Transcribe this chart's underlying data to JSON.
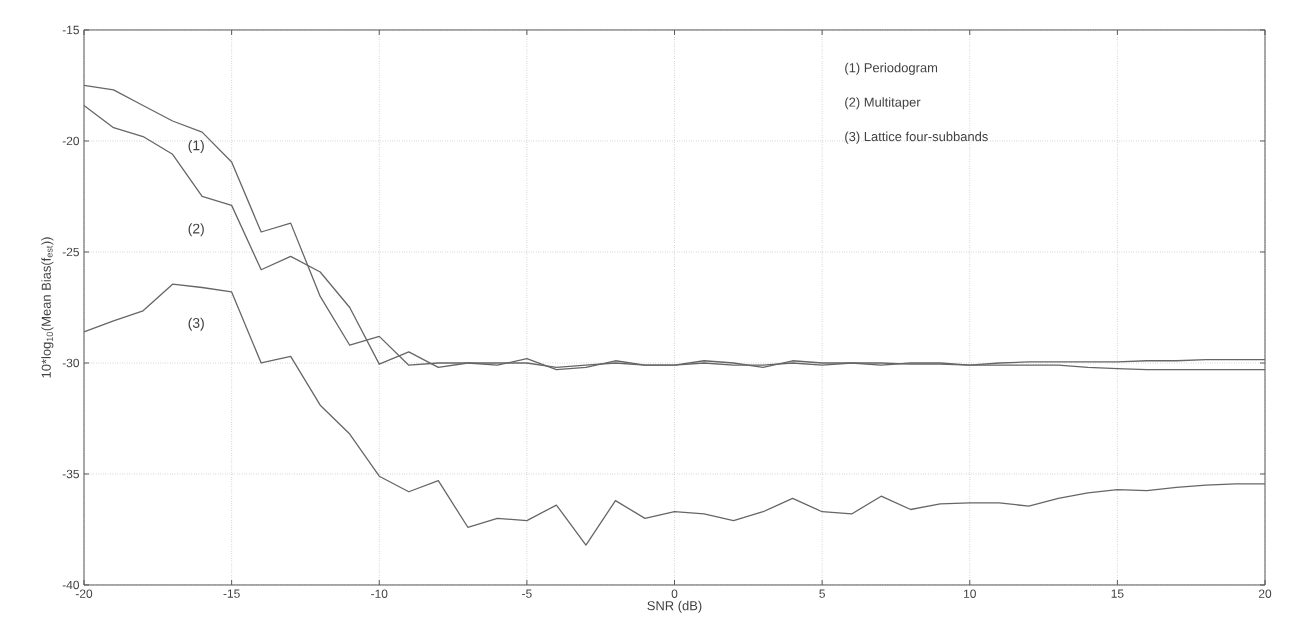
{
  "chart_data": {
    "type": "line",
    "xlabel": "SNR (dB)",
    "ylabel": "10*log$_{10}$(Mean Bias(f$_{est}$))",
    "x": [
      -20,
      -19,
      -18,
      -17,
      -16,
      -15,
      -14,
      -13,
      -12,
      -11,
      -10,
      -9,
      -8,
      -7,
      -6,
      -5,
      -4,
      -3,
      -2,
      -1,
      0,
      1,
      2,
      3,
      4,
      5,
      6,
      7,
      8,
      9,
      10,
      11,
      12,
      13,
      14,
      15,
      16,
      17,
      18,
      19,
      20
    ],
    "series": [
      {
        "color": "#666666",
        "values": [
          -17.5,
          -17.7,
          -18.4,
          -19.1,
          -19.6,
          -20.95,
          -24.1,
          -23.7,
          -27.0,
          -29.2,
          -28.8,
          -30.1,
          -30.0,
          -30.0,
          -30.1,
          -29.8,
          -30.3,
          -30.2,
          -29.9,
          -30.1,
          -30.1,
          -29.9,
          -30.0,
          -30.2,
          -29.9,
          -30.0,
          -30.0,
          -30.1,
          -30.0,
          -30.0,
          -30.1,
          -30.0,
          -29.95,
          -29.95,
          -29.95,
          -29.95,
          -29.9,
          -29.9,
          -29.85,
          -29.85,
          -29.85
        ]
      },
      {
        "color": "#666666",
        "values": [
          -18.4,
          -19.4,
          -19.8,
          -20.6,
          -22.5,
          -22.9,
          -25.8,
          -25.2,
          -25.9,
          -27.5,
          -30.05,
          -29.5,
          -30.2,
          -30.0,
          -30.0,
          -30.0,
          -30.2,
          -30.1,
          -30.0,
          -30.1,
          -30.1,
          -30.0,
          -30.1,
          -30.1,
          -30.0,
          -30.1,
          -30.0,
          -30.0,
          -30.05,
          -30.05,
          -30.1,
          -30.1,
          -30.1,
          -30.1,
          -30.2,
          -30.25,
          -30.3,
          -30.3,
          -30.3,
          -30.3,
          -30.3
        ]
      },
      {
        "color": "#666666",
        "values": [
          -28.6,
          -28.1,
          -27.65,
          -26.45,
          -26.6,
          -26.8,
          -30.0,
          -29.7,
          -31.9,
          -33.2,
          -35.1,
          -35.8,
          -35.3,
          -37.4,
          -37.0,
          -37.1,
          -36.4,
          -38.2,
          -36.2,
          -37.0,
          -36.7,
          -36.8,
          -37.1,
          -36.7,
          -36.1,
          -36.7,
          -36.8,
          -36.0,
          -36.6,
          -36.35,
          -36.3,
          -36.3,
          -36.45,
          -36.1,
          -35.85,
          -35.7,
          -35.75,
          -35.6,
          -35.5,
          -35.45,
          -35.45
        ]
      }
    ],
    "annotations": [
      "(1)",
      "(2)",
      "(3)",
      "(1) Periodogram",
      "(2) Multitaper",
      "(3) Lattice four-subbands"
    ],
    "xlim": [
      -20,
      20
    ],
    "ylim": [
      -40,
      -15
    ],
    "xticks": [
      -20,
      -15,
      -10,
      -5,
      0,
      5,
      10,
      15,
      20
    ],
    "yticks": [
      -40,
      -35,
      -30,
      -25,
      -20,
      -15
    ],
    "grid": true,
    "line_style": "solid",
    "marker": "none"
  }
}
